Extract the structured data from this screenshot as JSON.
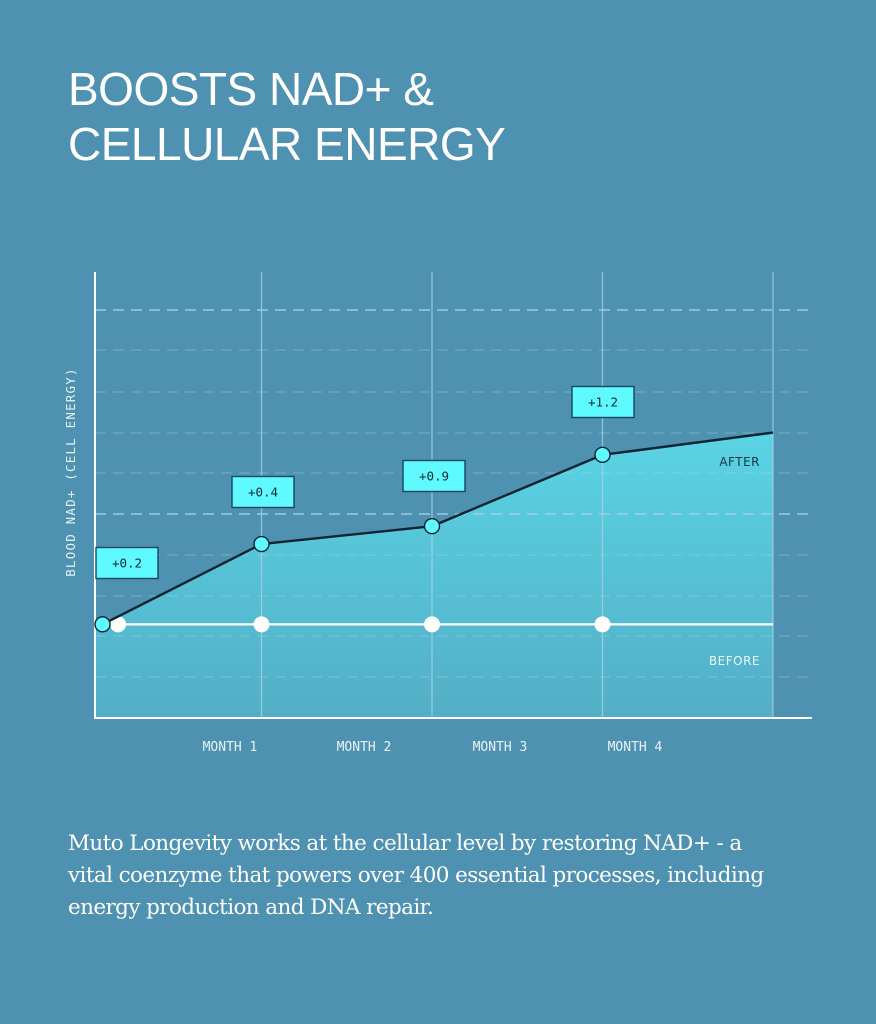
{
  "title": {
    "line1": "BOOSTS NAD+ &",
    "line2": "CELLULAR ENERGY"
  },
  "description": "Muto Longevity works at the cellular level by restoring NAD+ - a vital coenzyme that powers over 400 essential processes, including energy production and DNA repair.",
  "colors": {
    "background": "#4f91b0",
    "area_top": "#5ad4e4",
    "area_bottom": "#53aec6",
    "line": "#0f2333",
    "marker": "#5ffaff",
    "label_box": "#5ffaff",
    "grid": "#a9d3e3",
    "axis": "#ffffff"
  },
  "chart_data": {
    "type": "area",
    "title": "BOOSTS NAD+ & CELLULAR ENERGY",
    "xlabel": "",
    "ylabel": "BLOOD NAD+ (CELL ENERGY)",
    "x_tick_labels": [
      "MONTH 1",
      "MONTH 2",
      "MONTH 3",
      "MONTH 4"
    ],
    "xlim": [
      0,
      4.23
    ],
    "ylim": [
      0,
      10
    ],
    "grid": "dashed horizontal, solid vertical",
    "series": [
      {
        "name": "AFTER",
        "x": [
          0.05,
          1,
          2,
          3,
          4
        ],
        "values": [
          2.1,
          3.9,
          4.3,
          5.9,
          6.4
        ],
        "markers": [
          true,
          true,
          true,
          true,
          false
        ],
        "annotations": [
          "+0.2",
          "+0.4",
          "+0.9",
          "+1.2",
          null
        ]
      },
      {
        "name": "BEFORE",
        "x": [
          0,
          4
        ],
        "values": [
          2.1,
          2.1
        ],
        "marker_x": [
          0.1,
          1,
          2,
          3
        ]
      }
    ],
    "series_labels": [
      "AFTER",
      "BEFORE"
    ]
  }
}
